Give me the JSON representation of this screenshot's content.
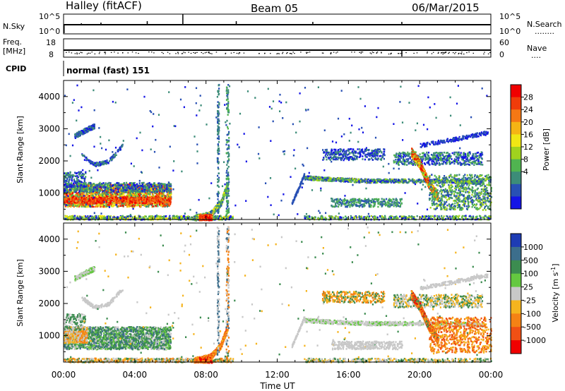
{
  "header": {
    "site": "Halley (fitACF)",
    "beam": "Beam 05",
    "date": "06/Mar/2015"
  },
  "top_panels": {
    "nsky_label": "N.Sky",
    "nsky_ticks": [
      "10^5",
      "10^0"
    ],
    "nsearch_label": "N.Search",
    "nsearch_ticks": [
      "10^5",
      "10^0"
    ],
    "freq_label_1": "Freq.",
    "freq_label_2": "[MHz]",
    "freq_ticks": [
      "18",
      "8"
    ],
    "nave_label": "Nave",
    "nave_ticks": [
      "60",
      "0"
    ],
    "cpid_label": "CPID",
    "cpid_text": "normal (fast) 151"
  },
  "colors": {
    "scale": [
      "#1414e6",
      "#2850b4",
      "#3c8c78",
      "#50b450",
      "#a0d21e",
      "#f0e614",
      "#f5b414",
      "#f57814",
      "#f03c0a",
      "#f00000"
    ]
  },
  "chart_data": [
    {
      "type": "heatmap",
      "name": "power",
      "ylabel": "Slant Range [km]",
      "yticks": [
        1000,
        2000,
        3000,
        4000
      ],
      "ylim": [
        180,
        4500
      ],
      "xlim": [
        0,
        24
      ],
      "xticks": [
        "00:00",
        "04:00",
        "08:00",
        "12:00",
        "16:00",
        "20:00",
        "00:00"
      ],
      "colorbar": {
        "label": "Power [dB]",
        "ticks": [
          "28",
          "24",
          "20",
          "16",
          "12",
          "8",
          "4"
        ],
        "colors": [
          "#f00000",
          "#f03c0a",
          "#f57814",
          "#f5b414",
          "#f0e614",
          "#a0d21e",
          "#50b450",
          "#3c8c78",
          "#2850b4",
          "#1414e6"
        ]
      }
    },
    {
      "type": "heatmap",
      "name": "velocity",
      "ylabel": "Slant Range [km]",
      "yticks": [
        1000,
        2000,
        3000,
        4000
      ],
      "ylim": [
        180,
        4500
      ],
      "xlim": [
        0,
        24
      ],
      "xticks": [
        "00:00",
        "04:00",
        "08:00",
        "12:00",
        "16:00",
        "20:00",
        "00:00"
      ],
      "xlabel": "Time UT",
      "colorbar": {
        "label": "Velocity [m s",
        "label_sup": "-1",
        "label_end": "]",
        "ticks": [
          "1000",
          "500",
          "100",
          "25",
          "-25",
          "-100",
          "-500",
          "-1000"
        ],
        "colors": [
          "#1e3cb4",
          "#3c6e8c",
          "#3c8c50",
          "#64c840",
          "#c8c8c8",
          "#f5b41e",
          "#f58214",
          "#f05014",
          "#f00000"
        ]
      }
    }
  ]
}
